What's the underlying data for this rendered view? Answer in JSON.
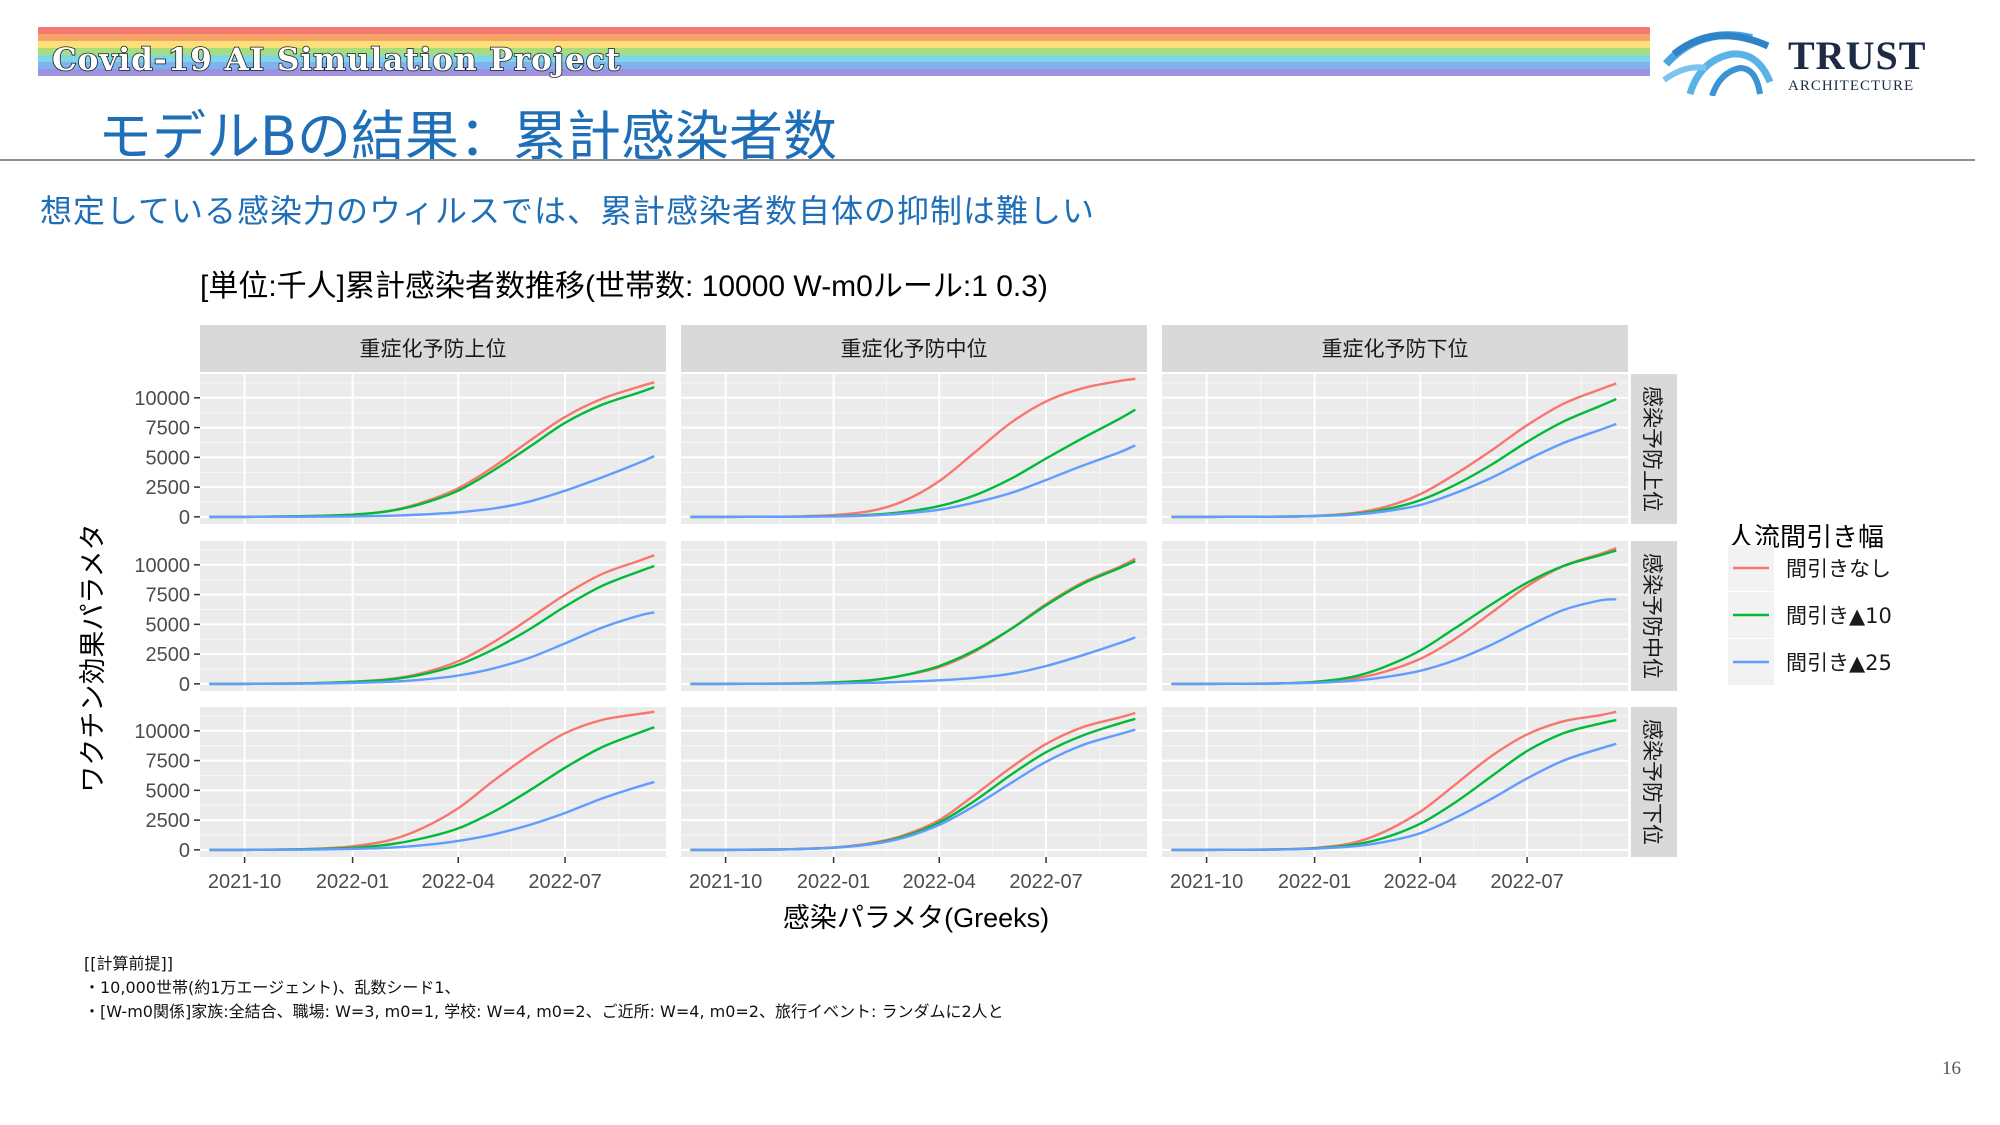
{
  "header": {
    "banner_text": "Covid-19 AI Simulation Project",
    "logo_word": "TRUST",
    "logo_sub": "ARCHITECTURE",
    "rainbow_colors": [
      "#f27a72",
      "#f8a468",
      "#fbe07a",
      "#a8dc7c",
      "#7fd6e8",
      "#7fb2ee",
      "#9d92dd"
    ]
  },
  "slide": {
    "title": "モデルBの結果：累計感染者数",
    "subtitle": "想定している感染力のウィルスでは、累計感染者数自体の抑制は難しい",
    "page_number": "16",
    "accent_color": "#1f6eb8"
  },
  "notes": [
    "[[計算前提]]",
    "・10,000世帯(約1万エージェント)、乱数シード1、",
    "・[W-m0関係]家族:全結合、職場: W=3, m0=1, 学校: W=4, m0=2、ご近所: W=4, m0=2、旅行イベント: ランダムに2人と"
  ],
  "chart_data": {
    "type": "line",
    "title": "[単位:千人]累計感染者数推移(世帯数: 10000 W-m0ルール:1 0.3)",
    "xlabel": "感染パラメタ(Greeks)",
    "ylabel": "ワクチン効果パラメタ",
    "legend_title": "人流間引き幅",
    "legend_position": "right",
    "grid": true,
    "ylim": [
      -600,
      12000
    ],
    "xlim": [
      "2021-08-24",
      "2022-09-25"
    ],
    "y_ticks": [
      0,
      2500,
      5000,
      7500,
      10000
    ],
    "y_tick_labels": [
      "0",
      "2500",
      "5000",
      "7500",
      "10000"
    ],
    "x_ticks": [
      "2021-10-01",
      "2022-01-01",
      "2022-04-01",
      "2022-07-01"
    ],
    "x_tick_labels": [
      "2021-10",
      "2022-01",
      "2022-04",
      "2022-07"
    ],
    "dates": [
      "2021-09-01",
      "2021-10-01",
      "2021-11-01",
      "2021-12-01",
      "2022-01-01",
      "2022-02-01",
      "2022-03-01",
      "2022-04-01",
      "2022-05-01",
      "2022-06-01",
      "2022-07-01",
      "2022-08-01",
      "2022-09-01",
      "2022-09-15"
    ],
    "series": [
      {
        "name": "間引きなし",
        "color": "#f8766d"
      },
      {
        "name": "間引き▲10",
        "color": "#00ba38"
      },
      {
        "name": "間引き▲25",
        "color": "#619cff"
      }
    ],
    "col_facets": [
      "重症化予防上位",
      "重症化予防中位",
      "重症化予防下位"
    ],
    "row_facets": [
      "感染予防上位",
      "感染予防中位",
      "感染予防下位"
    ],
    "panels": [
      {
        "row": 0,
        "col": 0,
        "lines": [
          [
            0,
            0,
            30,
            80,
            180,
            500,
            1200,
            2400,
            4200,
            6400,
            8400,
            9900,
            10900,
            11300
          ],
          [
            0,
            0,
            30,
            80,
            180,
            480,
            1100,
            2200,
            3900,
            5900,
            7900,
            9400,
            10400,
            10900
          ],
          [
            0,
            0,
            5,
            15,
            40,
            90,
            200,
            380,
            700,
            1300,
            2200,
            3300,
            4500,
            5100
          ]
        ]
      },
      {
        "row": 0,
        "col": 1,
        "lines": [
          [
            0,
            0,
            10,
            40,
            150,
            480,
            1300,
            3000,
            5400,
            7900,
            9700,
            10800,
            11400,
            11600
          ],
          [
            0,
            0,
            5,
            20,
            60,
            170,
            400,
            900,
            1800,
            3200,
            4900,
            6600,
            8200,
            9000
          ],
          [
            0,
            0,
            5,
            15,
            40,
            110,
            280,
            600,
            1200,
            2000,
            3100,
            4300,
            5400,
            6000
          ]
        ]
      },
      {
        "row": 0,
        "col": 2,
        "lines": [
          [
            0,
            0,
            5,
            20,
            80,
            300,
            800,
            1900,
            3600,
            5600,
            7700,
            9500,
            10700,
            11200
          ],
          [
            0,
            0,
            5,
            20,
            70,
            220,
            600,
            1400,
            2700,
            4400,
            6300,
            8000,
            9300,
            9900
          ],
          [
            0,
            0,
            5,
            15,
            60,
            170,
            450,
            1000,
            2000,
            3300,
            4800,
            6200,
            7300,
            7800
          ]
        ]
      },
      {
        "row": 1,
        "col": 0,
        "lines": [
          [
            0,
            0,
            20,
            60,
            180,
            400,
            900,
            1900,
            3500,
            5500,
            7500,
            9200,
            10300,
            10800
          ],
          [
            0,
            0,
            20,
            60,
            170,
            360,
            780,
            1600,
            2900,
            4600,
            6500,
            8200,
            9400,
            9900
          ],
          [
            0,
            0,
            10,
            30,
            80,
            170,
            350,
            700,
            1300,
            2200,
            3400,
            4700,
            5700,
            6000
          ]
        ]
      },
      {
        "row": 1,
        "col": 1,
        "lines": [
          [
            0,
            0,
            10,
            40,
            120,
            300,
            700,
            1400,
            2700,
            4600,
            6700,
            8500,
            9800,
            10500
          ],
          [
            0,
            0,
            10,
            40,
            120,
            300,
            700,
            1500,
            2800,
            4600,
            6600,
            8400,
            9700,
            10300
          ],
          [
            0,
            0,
            5,
            15,
            40,
            90,
            170,
            300,
            500,
            850,
            1500,
            2400,
            3400,
            3900
          ]
        ]
      },
      {
        "row": 1,
        "col": 2,
        "lines": [
          [
            0,
            0,
            10,
            40,
            130,
            400,
            1000,
            2100,
            3800,
            6000,
            8200,
            9900,
            10900,
            11400
          ],
          [
            0,
            0,
            10,
            40,
            170,
            560,
            1400,
            2800,
            4700,
            6700,
            8500,
            9900,
            10800,
            11200
          ],
          [
            0,
            0,
            10,
            30,
            90,
            250,
            550,
            1100,
            2000,
            3300,
            4800,
            6200,
            7000,
            7100
          ]
        ]
      },
      {
        "row": 2,
        "col": 0,
        "lines": [
          [
            0,
            0,
            30,
            100,
            300,
            800,
            1800,
            3500,
            5800,
            8000,
            9800,
            10900,
            11400,
            11600
          ],
          [
            0,
            0,
            20,
            70,
            170,
            450,
            950,
            1800,
            3200,
            5000,
            6900,
            8600,
            9800,
            10300
          ],
          [
            0,
            0,
            10,
            30,
            80,
            180,
            380,
            750,
            1300,
            2100,
            3100,
            4300,
            5300,
            5700
          ]
        ]
      },
      {
        "row": 2,
        "col": 1,
        "lines": [
          [
            0,
            0,
            20,
            70,
            200,
            550,
            1200,
            2500,
            4600,
            6900,
            8900,
            10300,
            11100,
            11500
          ],
          [
            0,
            0,
            20,
            60,
            180,
            480,
            1100,
            2300,
            4100,
            6300,
            8200,
            9600,
            10600,
            11000
          ],
          [
            0,
            0,
            20,
            60,
            180,
            460,
            1000,
            2100,
            3700,
            5600,
            7400,
            8800,
            9700,
            10100
          ]
        ]
      },
      {
        "row": 2,
        "col": 2,
        "lines": [
          [
            0,
            0,
            10,
            40,
            160,
            550,
            1500,
            3200,
            5500,
            7900,
            9700,
            10800,
            11300,
            11600
          ],
          [
            0,
            0,
            10,
            40,
            130,
            400,
            1000,
            2200,
            4000,
            6200,
            8300,
            9800,
            10600,
            10900
          ],
          [
            0,
            0,
            10,
            30,
            100,
            270,
            650,
            1400,
            2700,
            4300,
            6000,
            7500,
            8500,
            8900
          ]
        ]
      }
    ]
  }
}
